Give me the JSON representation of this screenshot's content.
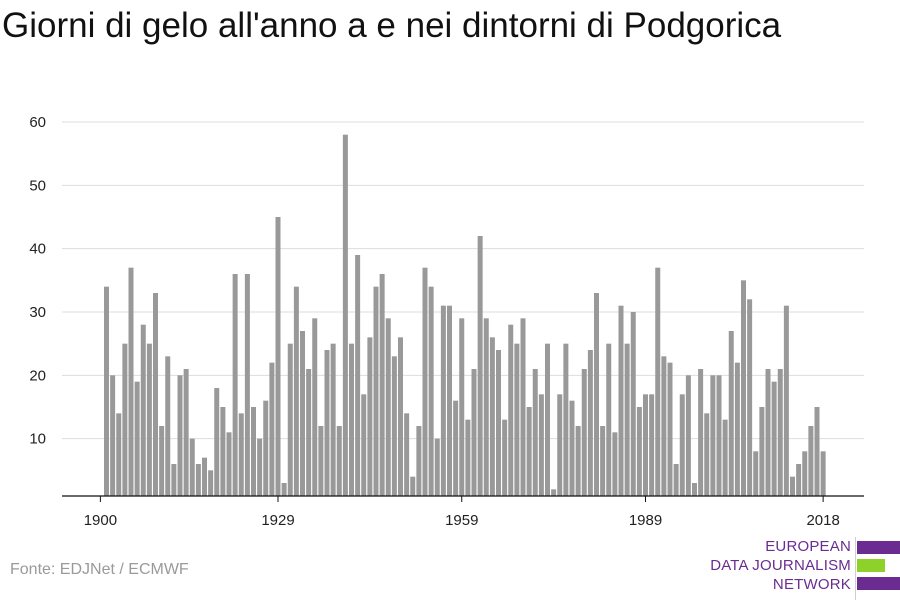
{
  "title": "Giorni di gelo all'anno a e nei dintorni di Podgorica",
  "source": "Fonte: EDJNet / ECMWF",
  "logo": {
    "lines": [
      "EUROPEAN",
      "DATA JOURNALISM",
      "NETWORK"
    ],
    "colors": {
      "purple": "#6a2c91",
      "green": "#8fd12b"
    }
  },
  "chart_data": {
    "type": "bar",
    "title": "Giorni di gelo all'anno a e nei dintorni di Podgorica",
    "xlabel": "",
    "ylabel": "",
    "x_start": 1901,
    "x_end": 2018,
    "xticks": [
      1900,
      1929,
      1959,
      1989,
      2018
    ],
    "yticks": [
      10,
      20,
      30,
      40,
      50,
      60
    ],
    "ylim": [
      0,
      60
    ],
    "grid": true,
    "bar_color": "#999999",
    "values": [
      34,
      20,
      14,
      25,
      37,
      19,
      28,
      25,
      33,
      12,
      23,
      6,
      20,
      21,
      10,
      6,
      7,
      5,
      18,
      15,
      11,
      36,
      14,
      36,
      15,
      10,
      16,
      22,
      45,
      3,
      25,
      34,
      27,
      21,
      29,
      12,
      24,
      25,
      12,
      58,
      25,
      39,
      17,
      26,
      34,
      36,
      29,
      23,
      26,
      14,
      4,
      12,
      37,
      34,
      10,
      31,
      31,
      16,
      29,
      13,
      21,
      42,
      29,
      26,
      24,
      13,
      28,
      25,
      29,
      15,
      21,
      17,
      25,
      2,
      17,
      25,
      16,
      12,
      21,
      24,
      33,
      12,
      25,
      11,
      31,
      25,
      30,
      15,
      17,
      17,
      37,
      23,
      22,
      6,
      17,
      20,
      3,
      21,
      14,
      20,
      20,
      13,
      27,
      22,
      35,
      32,
      8,
      15,
      21,
      19,
      21,
      31,
      4,
      6,
      8,
      12,
      15,
      8
    ]
  }
}
